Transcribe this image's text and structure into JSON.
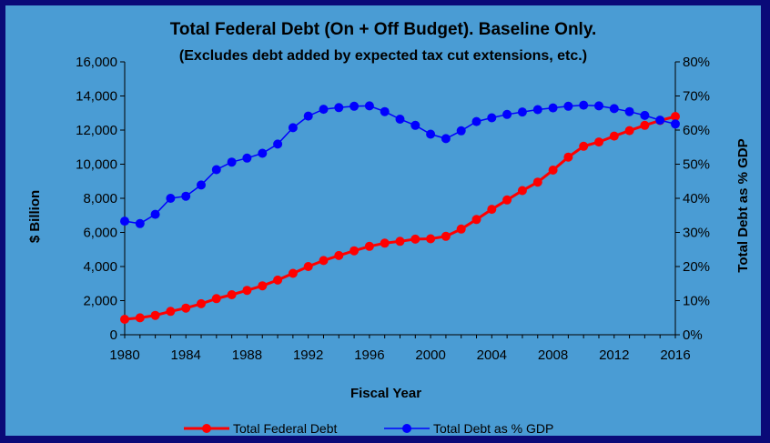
{
  "chart_data": {
    "type": "line",
    "title": "Total Federal Debt (On + Off Budget).  Baseline Only.",
    "subtitle": "(Excludes debt added by expected tax cut extensions, etc.)",
    "xlabel": "Fiscal Year",
    "ylabel": "$ Billion",
    "y2label": "Total Debt as % GDP",
    "xlim": [
      1980,
      2016
    ],
    "ylim": [
      0,
      16000
    ],
    "y2lim": [
      0,
      80
    ],
    "x_ticks": [
      "1980",
      "1984",
      "1988",
      "1992",
      "1996",
      "2000",
      "2004",
      "2008",
      "2012",
      "2016"
    ],
    "y_ticks": [
      "0",
      "2,000",
      "4,000",
      "6,000",
      "8,000",
      "10,000",
      "12,000",
      "14,000",
      "16,000"
    ],
    "y2_ticks": [
      "0%",
      "10%",
      "20%",
      "30%",
      "40%",
      "50%",
      "60%",
      "70%",
      "80%"
    ],
    "grid": false,
    "legend_position": "bottom",
    "x": [
      1980,
      1981,
      1982,
      1983,
      1984,
      1985,
      1986,
      1987,
      1988,
      1989,
      1990,
      1991,
      1992,
      1993,
      1994,
      1995,
      1996,
      1997,
      1998,
      1999,
      2000,
      2001,
      2002,
      2003,
      2004,
      2005,
      2006,
      2007,
      2008,
      2009,
      2010,
      2011,
      2012,
      2013,
      2014,
      2015,
      2016
    ],
    "series": [
      {
        "name": "Total Federal Debt",
        "axis": "left",
        "color": "#ff0000",
        "values": [
          909,
          994,
          1137,
          1371,
          1564,
          1817,
          2120,
          2346,
          2601,
          2868,
          3206,
          3598,
          4002,
          4351,
          4643,
          4921,
          5182,
          5369,
          5478,
          5606,
          5629,
          5770,
          6198,
          6760,
          7355,
          7905,
          8451,
          8951,
          9654,
          10414,
          11051,
          11300,
          11650,
          11970,
          12280,
          12560,
          12800
        ]
      },
      {
        "name": "Total Debt as % GDP",
        "axis": "right",
        "color": "#0000ff",
        "values": [
          33.3,
          32.6,
          35.3,
          40.0,
          40.6,
          43.9,
          48.4,
          50.6,
          51.8,
          53.2,
          55.9,
          60.7,
          64.1,
          66.1,
          66.6,
          67.0,
          67.1,
          65.4,
          63.2,
          61.4,
          58.8,
          57.5,
          59.8,
          62.5,
          63.6,
          64.6,
          65.3,
          66.0,
          66.5,
          67.0,
          67.3,
          67.1,
          66.3,
          65.4,
          64.3,
          62.9,
          61.8
        ]
      }
    ]
  }
}
